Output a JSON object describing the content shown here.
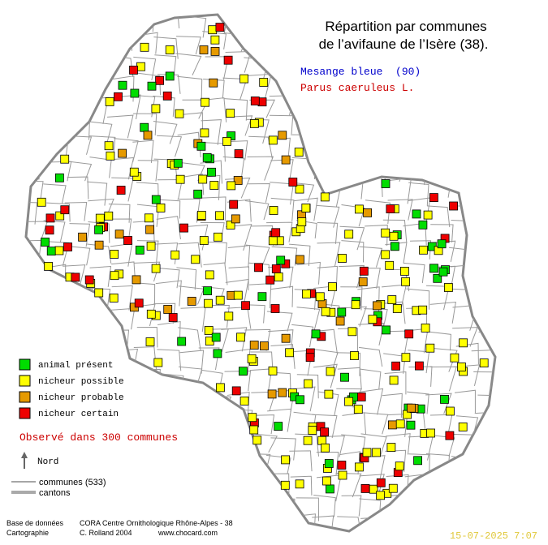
{
  "title": {
    "line1": "Répartition par communes",
    "line2": "de l’avifaune de l’Isère (38)."
  },
  "species": {
    "common_name": "Mesange bleue  (90)",
    "latin_name": "Parus caeruleus L."
  },
  "legend": [
    {
      "label": "animal présent",
      "color": "#00dd00"
    },
    {
      "label": "nicheur possible",
      "color": "#ffff00"
    },
    {
      "label": "nicheur probable",
      "color": "#e69a00"
    },
    {
      "label": "nicheur certain",
      "color": "#ee0000"
    }
  ],
  "summary": "Observé dans 300 communes",
  "north": "Nord",
  "lines": {
    "communes": "communes (533)",
    "cantons": "cantons"
  },
  "credits": {
    "db_label": "Base de données",
    "db_value": "CORA Centre Ornithologique Rhône-Alpes - 38",
    "carto_label": "Cartographie",
    "carto_value": "C. Rolland 2004",
    "site": "www.chocard.com"
  },
  "date": "15-07-2025 7:07"
}
